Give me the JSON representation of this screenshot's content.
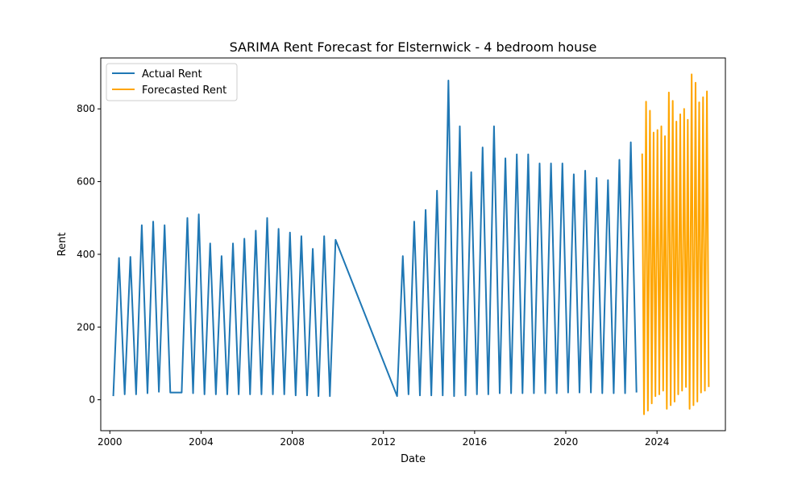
{
  "chart_data": {
    "type": "line",
    "title": "SARIMA Rent Forecast for Elsternwick - 4 bedroom house",
    "xlabel": "Date",
    "ylabel": "Rent",
    "xlim": [
      1999.6,
      2027.0
    ],
    "ylim": [
      -85,
      940
    ],
    "xticks": [
      {
        "value": 2000,
        "label": "2000"
      },
      {
        "value": 2004,
        "label": "2004"
      },
      {
        "value": 2008,
        "label": "2008"
      },
      {
        "value": 2012,
        "label": "2012"
      },
      {
        "value": 2016,
        "label": "2016"
      },
      {
        "value": 2020,
        "label": "2020"
      },
      {
        "value": 2024,
        "label": "2024"
      }
    ],
    "yticks": [
      {
        "value": 0,
        "label": "0"
      },
      {
        "value": 200,
        "label": "200"
      },
      {
        "value": 400,
        "label": "400"
      },
      {
        "value": 600,
        "label": "600"
      },
      {
        "value": 800,
        "label": "800"
      }
    ],
    "grid": false,
    "legend": "top-left",
    "series": [
      {
        "name": "Actual Rent",
        "color": "#1f77b4",
        "points": [
          [
            2000.15,
            10
          ],
          [
            2000.4,
            390
          ],
          [
            2000.65,
            15
          ],
          [
            2000.9,
            393
          ],
          [
            2001.15,
            15
          ],
          [
            2001.4,
            480
          ],
          [
            2001.65,
            18
          ],
          [
            2001.9,
            490
          ],
          [
            2002.15,
            22
          ],
          [
            2002.4,
            480
          ],
          [
            2002.65,
            20
          ],
          [
            2002.9,
            20
          ],
          [
            2003.15,
            20
          ],
          [
            2003.4,
            500
          ],
          [
            2003.65,
            18
          ],
          [
            2003.9,
            510
          ],
          [
            2004.15,
            15
          ],
          [
            2004.4,
            430
          ],
          [
            2004.65,
            15
          ],
          [
            2004.9,
            395
          ],
          [
            2005.15,
            15
          ],
          [
            2005.4,
            430
          ],
          [
            2005.65,
            15
          ],
          [
            2005.9,
            443
          ],
          [
            2006.15,
            15
          ],
          [
            2006.4,
            465
          ],
          [
            2006.65,
            15
          ],
          [
            2006.9,
            500
          ],
          [
            2007.15,
            15
          ],
          [
            2007.4,
            470
          ],
          [
            2007.65,
            15
          ],
          [
            2007.9,
            460
          ],
          [
            2008.15,
            12
          ],
          [
            2008.4,
            450
          ],
          [
            2008.65,
            12
          ],
          [
            2008.9,
            415
          ],
          [
            2009.15,
            10
          ],
          [
            2009.4,
            450
          ],
          [
            2009.65,
            10
          ],
          [
            2009.9,
            440
          ],
          [
            2012.6,
            10
          ],
          [
            2012.85,
            395
          ],
          [
            2013.1,
            15
          ],
          [
            2013.35,
            490
          ],
          [
            2013.6,
            12
          ],
          [
            2013.85,
            522
          ],
          [
            2014.1,
            12
          ],
          [
            2014.35,
            575
          ],
          [
            2014.6,
            12
          ],
          [
            2014.85,
            878
          ],
          [
            2015.1,
            10
          ],
          [
            2015.35,
            752
          ],
          [
            2015.6,
            12
          ],
          [
            2015.85,
            626
          ],
          [
            2016.1,
            15
          ],
          [
            2016.35,
            694
          ],
          [
            2016.6,
            15
          ],
          [
            2016.85,
            752
          ],
          [
            2017.1,
            18
          ],
          [
            2017.35,
            664
          ],
          [
            2017.6,
            18
          ],
          [
            2017.85,
            675
          ],
          [
            2018.1,
            18
          ],
          [
            2018.35,
            675
          ],
          [
            2018.6,
            18
          ],
          [
            2018.85,
            650
          ],
          [
            2019.1,
            18
          ],
          [
            2019.35,
            650
          ],
          [
            2019.6,
            18
          ],
          [
            2019.85,
            650
          ],
          [
            2020.1,
            20
          ],
          [
            2020.35,
            620
          ],
          [
            2020.6,
            20
          ],
          [
            2020.85,
            630
          ],
          [
            2021.1,
            20
          ],
          [
            2021.35,
            610
          ],
          [
            2021.6,
            18
          ],
          [
            2021.85,
            604
          ],
          [
            2022.1,
            18
          ],
          [
            2022.35,
            660
          ],
          [
            2022.6,
            18
          ],
          [
            2022.85,
            708
          ],
          [
            2023.1,
            20
          ]
        ]
      },
      {
        "name": "Forecasted Rent",
        "color": "#ffa500",
        "points": [
          [
            2023.35,
            677
          ],
          [
            2023.43,
            -40
          ],
          [
            2023.52,
            820
          ],
          [
            2023.6,
            -30
          ],
          [
            2023.69,
            795
          ],
          [
            2023.77,
            -10
          ],
          [
            2023.85,
            735
          ],
          [
            2023.93,
            10
          ],
          [
            2024.02,
            742
          ],
          [
            2024.1,
            15
          ],
          [
            2024.19,
            752
          ],
          [
            2024.27,
            25
          ],
          [
            2024.35,
            725
          ],
          [
            2024.43,
            -25
          ],
          [
            2024.52,
            845
          ],
          [
            2024.6,
            -15
          ],
          [
            2024.69,
            822
          ],
          [
            2024.77,
            -5
          ],
          [
            2024.85,
            765
          ],
          [
            2024.93,
            15
          ],
          [
            2025.02,
            785
          ],
          [
            2025.1,
            25
          ],
          [
            2025.19,
            800
          ],
          [
            2025.27,
            35
          ],
          [
            2025.35,
            770
          ],
          [
            2025.43,
            -25
          ],
          [
            2025.52,
            895
          ],
          [
            2025.6,
            -15
          ],
          [
            2025.69,
            872
          ],
          [
            2025.77,
            -5
          ],
          [
            2025.85,
            818
          ],
          [
            2025.93,
            20
          ],
          [
            2026.02,
            832
          ],
          [
            2026.1,
            25
          ],
          [
            2026.19,
            848
          ],
          [
            2026.27,
            35
          ]
        ]
      }
    ]
  }
}
